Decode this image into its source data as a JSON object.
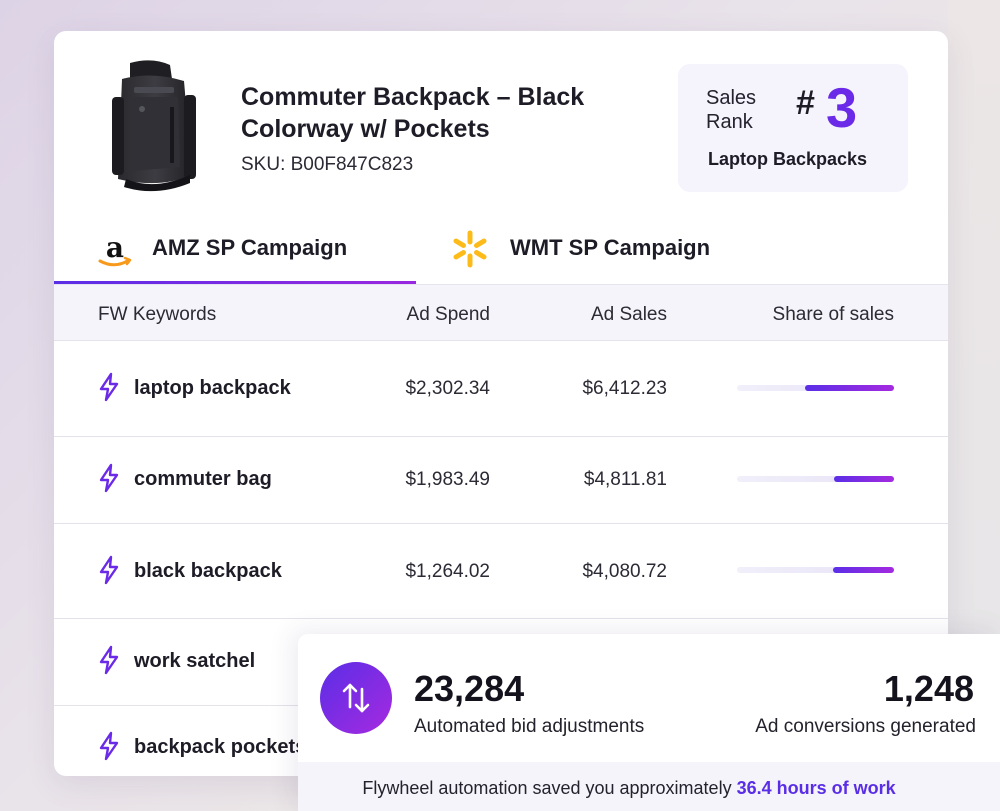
{
  "product": {
    "title": "Commuter Backpack – Black Colorway w/ Pockets",
    "sku": "SKU: B00F847C823"
  },
  "rank": {
    "label": "Sales Rank",
    "hash": "#",
    "value": "3",
    "category": "Laptop Backpacks"
  },
  "tabs": [
    {
      "label": "AMZ SP Campaign",
      "icon": "amazon-logo-icon",
      "active": true
    },
    {
      "label": "WMT SP Campaign",
      "icon": "walmart-spark-icon",
      "active": false
    }
  ],
  "table": {
    "headers": [
      "FW Keywords",
      "Ad Spend",
      "Ad Sales",
      "Share of sales"
    ],
    "rows": [
      {
        "keyword": "laptop backpack",
        "spend": "$2,302.34",
        "sales": "$6,412.23",
        "share": 0.57
      },
      {
        "keyword": "commuter bag",
        "spend": "$1,983.49",
        "sales": "$4,811.81",
        "share": 0.38
      },
      {
        "keyword": "black backpack",
        "spend": "$1,264.02",
        "sales": "$4,080.72",
        "share": 0.39
      },
      {
        "keyword": "work satchel",
        "spend": "",
        "sales": "",
        "share": null
      },
      {
        "keyword": "backpack pockets",
        "spend": "",
        "sales": "",
        "share": null
      }
    ]
  },
  "stats": {
    "bid_adjustments": "23,284",
    "bid_adjustments_label": "Automated bid adjustments",
    "conversions": "1,248",
    "conversions_label": "Ad conversions generated",
    "footer_prefix": "Flywheel automation saved you approximately ",
    "footer_highlight": "36.4 hours of work"
  },
  "colors": {
    "accent": "#6a2ae8",
    "accent_end": "#a62ae0",
    "walmart_yellow": "#fdbb1a"
  }
}
